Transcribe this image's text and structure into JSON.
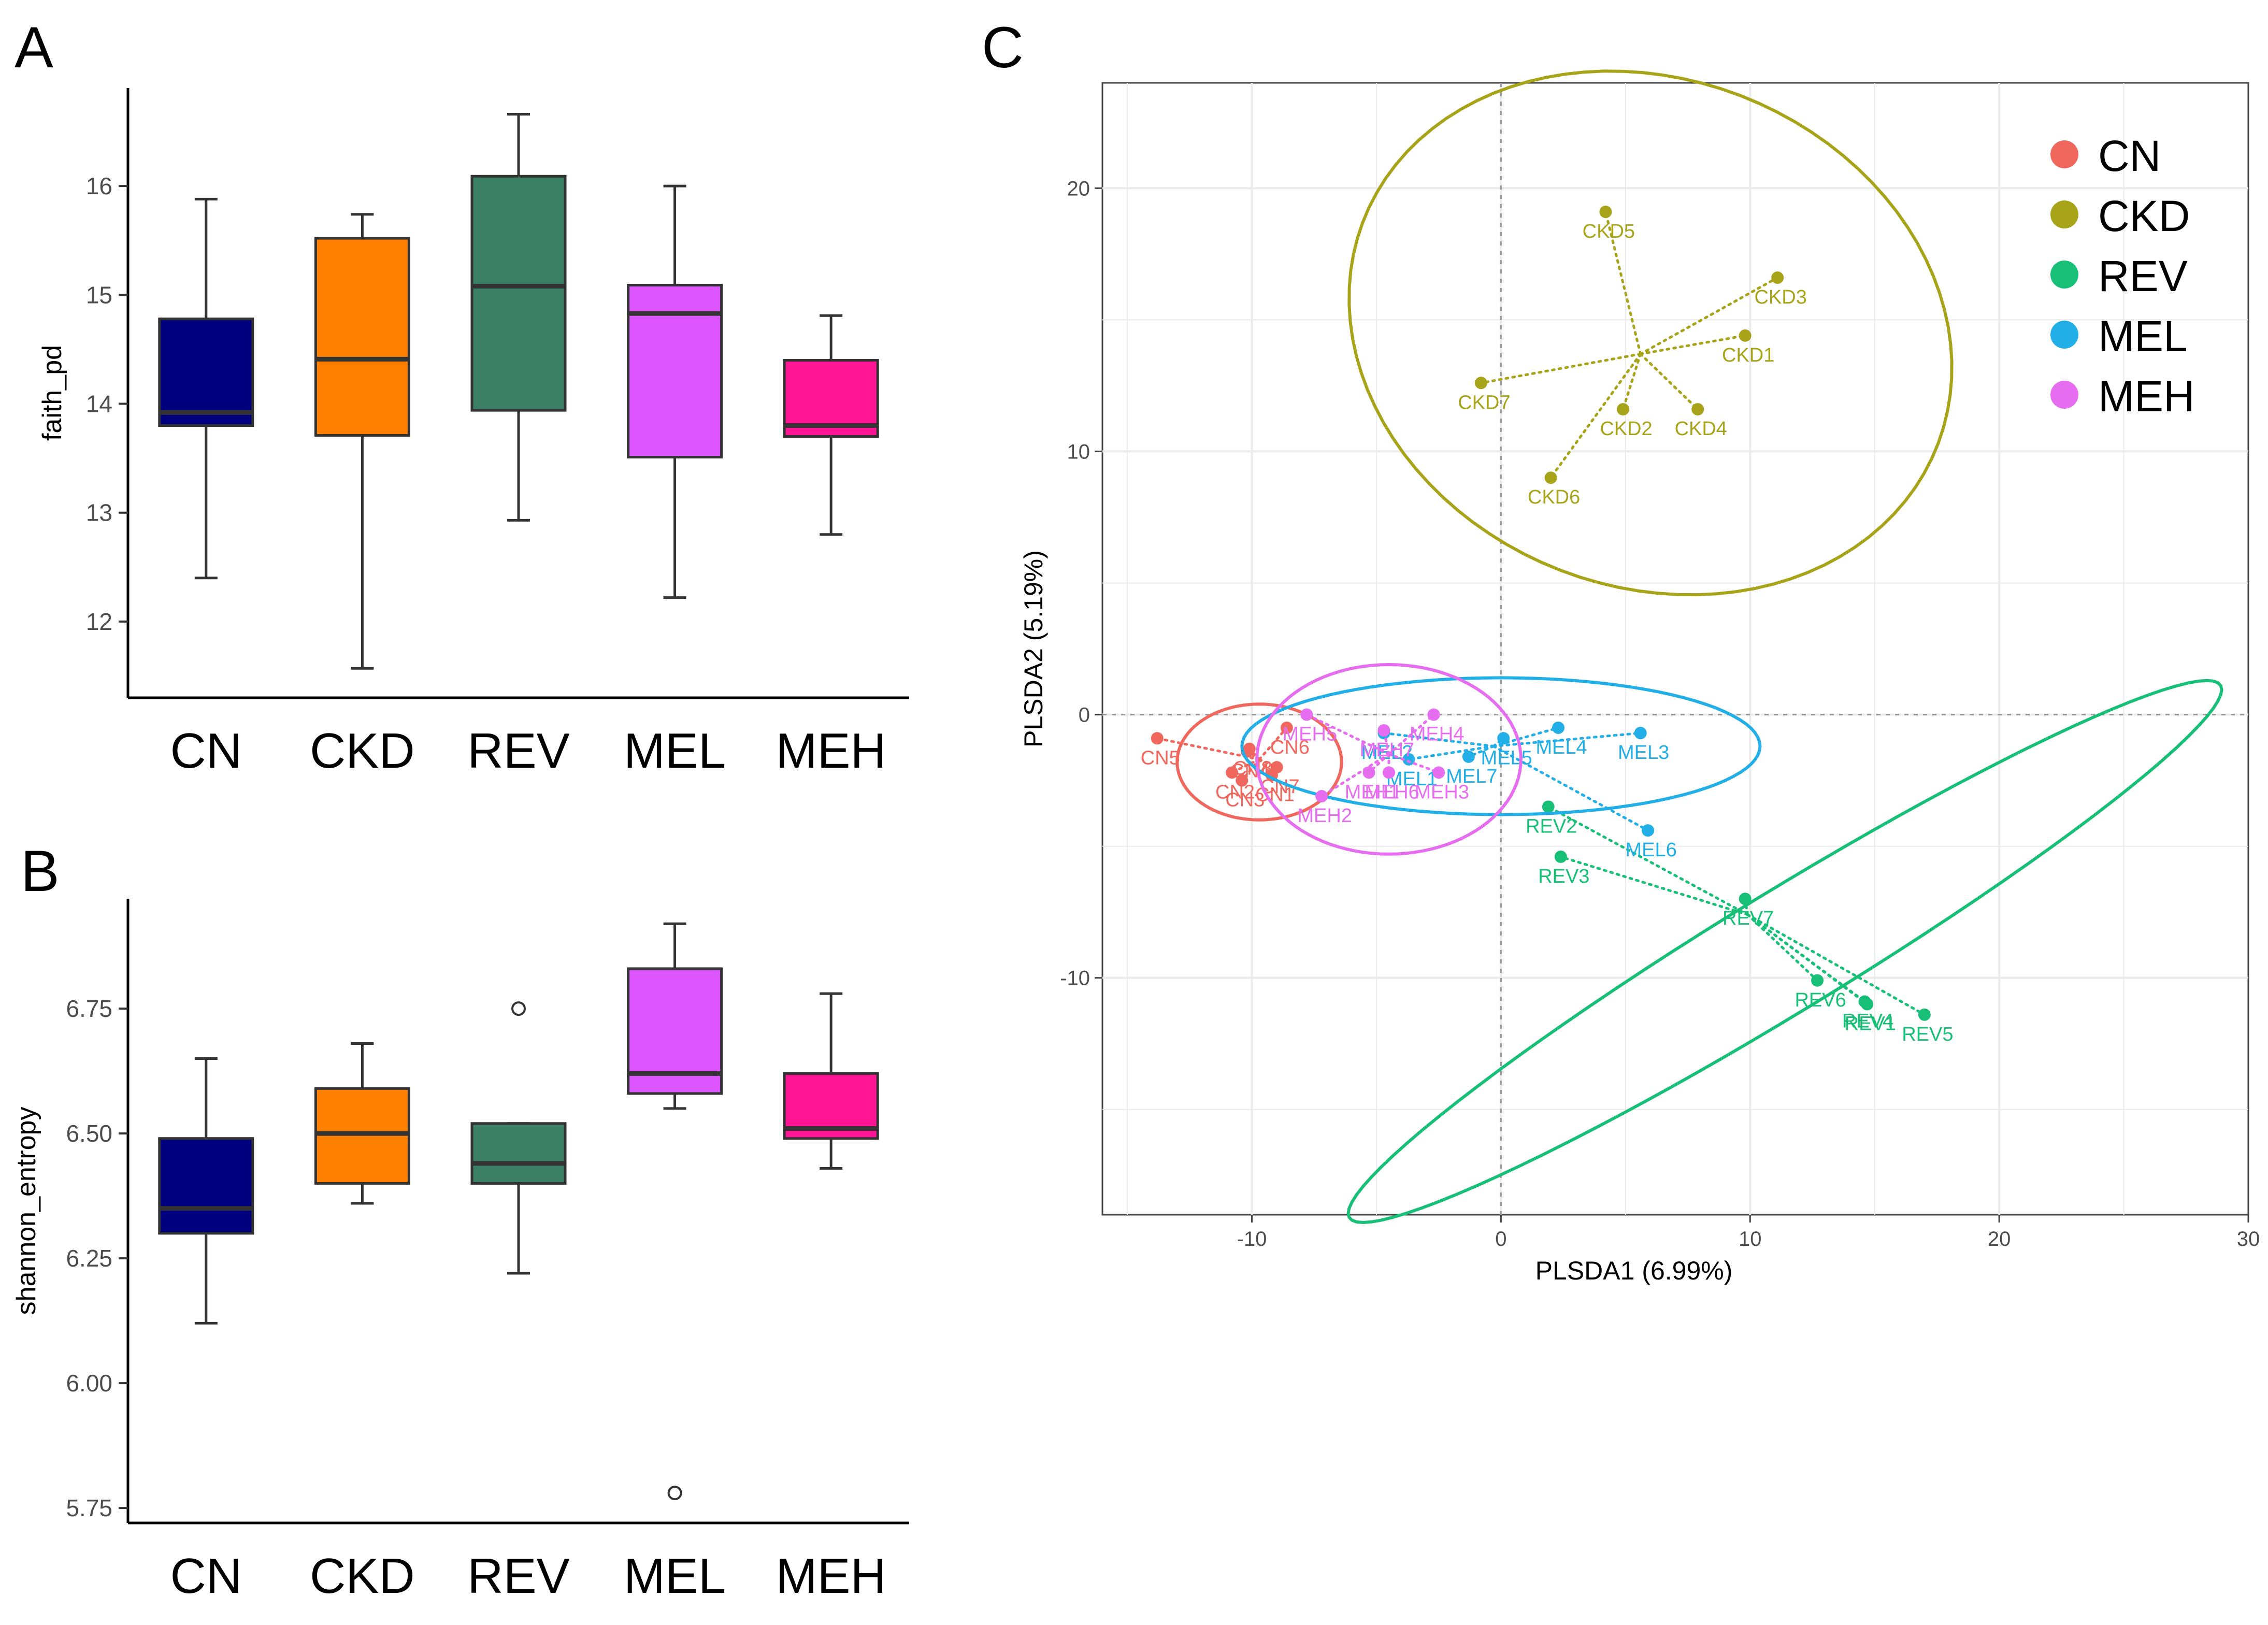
{
  "panel_labels": {
    "a": "A",
    "b": "B",
    "c": "C"
  },
  "colors": {
    "CN": "#00007f",
    "CKD": "#ff7f00",
    "REV": "#3a7f66",
    "MEL": "#dd55ff",
    "MEH": "#ff1493",
    "pCN": "#f0675e",
    "pCKD": "#a7a41a",
    "pREV": "#18bf76",
    "pMEL": "#22aee6",
    "pMEH": "#e66df0"
  },
  "chart_data": [
    {
      "id": "A",
      "type": "box",
      "ylabel": "faith_pd",
      "categories": [
        "CN",
        "CKD",
        "REV",
        "MEL",
        "MEH"
      ],
      "ylim": [
        11.3,
        16.9
      ],
      "yticks": [
        "12",
        "13",
        "14",
        "15",
        "16"
      ],
      "boxes": [
        {
          "min": 12.4,
          "q1": 13.8,
          "median": 13.92,
          "q3": 14.78,
          "max": 15.88,
          "outliers": []
        },
        {
          "min": 11.57,
          "q1": 13.71,
          "median": 14.41,
          "q3": 15.52,
          "max": 15.74,
          "outliers": []
        },
        {
          "min": 12.93,
          "q1": 13.94,
          "median": 15.08,
          "q3": 16.09,
          "max": 16.66,
          "outliers": []
        },
        {
          "min": 12.22,
          "q1": 13.51,
          "median": 14.83,
          "q3": 15.09,
          "max": 16.0,
          "outliers": []
        },
        {
          "min": 12.8,
          "q1": 13.7,
          "median": 13.8,
          "q3": 14.4,
          "max": 14.81,
          "outliers": []
        }
      ]
    },
    {
      "id": "B",
      "type": "box",
      "ylabel": "shannon_entropy",
      "categories": [
        "CN",
        "CKD",
        "REV",
        "MEL",
        "MEH"
      ],
      "ylim": [
        5.72,
        6.97
      ],
      "yticks": [
        "5.75",
        "6.00",
        "6.25",
        "6.50",
        "6.75"
      ],
      "boxes": [
        {
          "min": 6.12,
          "q1": 6.3,
          "median": 6.35,
          "q3": 6.49,
          "max": 6.65,
          "outliers": []
        },
        {
          "min": 6.36,
          "q1": 6.4,
          "median": 6.5,
          "q3": 6.59,
          "max": 6.68,
          "outliers": []
        },
        {
          "min": 6.22,
          "q1": 6.4,
          "median": 6.44,
          "q3": 6.52,
          "max": 6.52,
          "outliers": [
            6.75
          ]
        },
        {
          "min": 6.55,
          "q1": 6.58,
          "median": 6.62,
          "q3": 6.83,
          "max": 6.92,
          "outliers": [
            5.78
          ]
        },
        {
          "min": 6.43,
          "q1": 6.49,
          "median": 6.51,
          "q3": 6.62,
          "max": 6.78,
          "outliers": []
        }
      ]
    },
    {
      "id": "C",
      "type": "scatter",
      "xlabel": "PLSDA1 (6.99%)",
      "ylabel": "PLSDA2 (5.19%)",
      "xlim": [
        -16,
        30
      ],
      "ylim": [
        -19,
        24
      ],
      "xticks": [
        "-10",
        "0",
        "10",
        "20",
        "30"
      ],
      "yticks": [
        "20",
        "10",
        "0",
        "-10"
      ],
      "legend": {
        "position": "top-right",
        "labels": [
          "CN",
          "CKD",
          "REV",
          "MEL",
          "MEH"
        ]
      },
      "groups": [
        {
          "name": "CN",
          "centroid": [
            -9.7,
            -1.7
          ],
          "ellipse": {
            "cx": -9.7,
            "cy": -1.8,
            "rx": 3.3,
            "ry": 2.2,
            "angle": 0
          },
          "points": [
            {
              "label": "CN1",
              "x": -9.2,
              "y": -2.3
            },
            {
              "label": "CN2",
              "x": -10.8,
              "y": -2.2
            },
            {
              "label": "CN3",
              "x": -10.4,
              "y": -2.5
            },
            {
              "label": "CN4",
              "x": -10.2,
              "y": -1.4
            },
            {
              "label": "CN5",
              "x": -13.8,
              "y": -0.9
            },
            {
              "label": "CN6",
              "x": -8.6,
              "y": -0.5
            },
            {
              "label": "CN7",
              "x": -9.0,
              "y": -2.0
            },
            {
              "label": "CN8",
              "x": -10.1,
              "y": -1.3
            }
          ]
        },
        {
          "name": "CKD",
          "centroid": [
            5.6,
            13.7
          ],
          "ellipse": {
            "cx": 6.0,
            "cy": 14.5,
            "rx": 12.3,
            "ry": 9.7,
            "angle": -17
          },
          "points": [
            {
              "label": "CKD1",
              "x": 9.8,
              "y": 14.4
            },
            {
              "label": "CKD2",
              "x": 4.9,
              "y": 11.6
            },
            {
              "label": "CKD3",
              "x": 11.1,
              "y": 16.6
            },
            {
              "label": "CKD4",
              "x": 7.9,
              "y": 11.6
            },
            {
              "label": "CKD5",
              "x": 4.2,
              "y": 19.1
            },
            {
              "label": "CKD6",
              "x": 2.0,
              "y": 9.0
            },
            {
              "label": "CKD7",
              "x": -0.8,
              "y": 12.6
            }
          ]
        },
        {
          "name": "REV",
          "centroid": [
            9.9,
            -7.6
          ],
          "ellipse": {
            "cx": 11.4,
            "cy": -9.0,
            "rx": 20.2,
            "ry": 2.3,
            "angle": 30
          },
          "points": [
            {
              "label": "REV1",
              "x": 14.7,
              "y": -11.0
            },
            {
              "label": "REV2",
              "x": 1.9,
              "y": -3.5
            },
            {
              "label": "REV3",
              "x": 2.4,
              "y": -5.4
            },
            {
              "label": "REV4",
              "x": 14.6,
              "y": -10.9
            },
            {
              "label": "REV5",
              "x": 17.0,
              "y": -11.4
            },
            {
              "label": "REV6",
              "x": 12.7,
              "y": -10.1
            },
            {
              "label": "REV7",
              "x": 9.8,
              "y": -7.0
            }
          ]
        },
        {
          "name": "MEL",
          "centroid": [
            -0.3,
            -1.2
          ],
          "ellipse": {
            "cx": 0.0,
            "cy": -1.2,
            "rx": 10.4,
            "ry": 2.6,
            "angle": 0
          },
          "points": [
            {
              "label": "MEL1",
              "x": -3.7,
              "y": -1.7
            },
            {
              "label": "MEL2",
              "x": -4.7,
              "y": -0.7
            },
            {
              "label": "MEL3",
              "x": 5.6,
              "y": -0.7
            },
            {
              "label": "MEL4",
              "x": 2.3,
              "y": -0.5
            },
            {
              "label": "MEL5",
              "x": 0.1,
              "y": -0.9
            },
            {
              "label": "MEL6",
              "x": 5.9,
              "y": -4.4
            },
            {
              "label": "MEL7",
              "x": -1.3,
              "y": -1.6
            }
          ]
        },
        {
          "name": "MEH",
          "centroid": [
            -4.5,
            -1.5
          ],
          "ellipse": {
            "cx": -4.5,
            "cy": -1.7,
            "rx": 5.3,
            "ry": 3.6,
            "angle": 0
          },
          "points": [
            {
              "label": "MEH1",
              "x": -5.3,
              "y": -2.2
            },
            {
              "label": "MEH2",
              "x": -7.2,
              "y": -3.1
            },
            {
              "label": "MEH3",
              "x": -2.5,
              "y": -2.2
            },
            {
              "label": "MEH4",
              "x": -2.7,
              "y": 0.0
            },
            {
              "label": "MEH5",
              "x": -7.8,
              "y": 0.0
            },
            {
              "label": "MEH6",
              "x": -4.5,
              "y": -2.2
            },
            {
              "label": "MEH7",
              "x": -4.7,
              "y": -0.6
            }
          ]
        }
      ]
    }
  ]
}
